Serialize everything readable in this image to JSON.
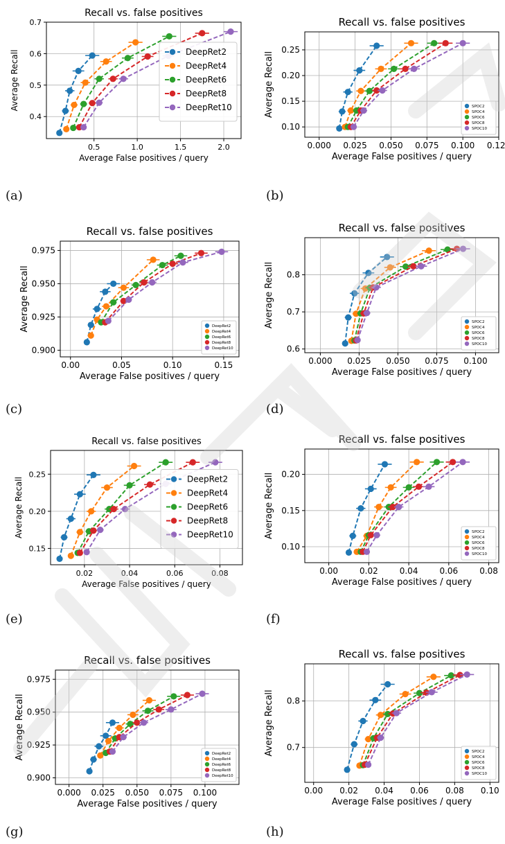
{
  "figure": {
    "captions": [
      "(a)",
      "(b)",
      "(c)",
      "(d)",
      "(e)",
      "(f)",
      "(g)",
      "(h)"
    ]
  },
  "chart_data": [
    {
      "type": "scatter",
      "title": "Recall vs. false positives",
      "xlabel": "Average False positives / query",
      "ylabel": "Average Recall",
      "xlim": [
        -0.05,
        2.2
      ],
      "ylim": [
        0.33,
        0.7
      ],
      "xticks": [
        0.5,
        1.0,
        1.5,
        2.0
      ],
      "xtick_labels": [
        "0.5",
        "1.0",
        "1.5",
        "2.0"
      ],
      "yticks": [
        0.4,
        0.5,
        0.6,
        0.7
      ],
      "ytick_labels": [
        "0.4",
        "0.5",
        "0.6",
        "0.7"
      ],
      "grid": true,
      "legend": "center-right",
      "series": [
        {
          "name": "DeepRet2",
          "color": "#1f77b4",
          "x": [
            0.1,
            0.17,
            0.22,
            0.32,
            0.48
          ],
          "y": [
            0.348,
            0.418,
            0.482,
            0.545,
            0.594
          ]
        },
        {
          "name": "DeepRet4",
          "color": "#ff7f0e",
          "x": [
            0.18,
            0.27,
            0.4,
            0.64,
            0.98
          ],
          "y": [
            0.36,
            0.437,
            0.508,
            0.575,
            0.636
          ]
        },
        {
          "name": "DeepRet6",
          "color": "#2ca02c",
          "x": [
            0.26,
            0.38,
            0.56,
            0.89,
            1.37
          ],
          "y": [
            0.364,
            0.44,
            0.52,
            0.586,
            0.655
          ]
        },
        {
          "name": "DeepRet8",
          "color": "#d62728",
          "x": [
            0.33,
            0.48,
            0.72,
            1.12,
            1.75
          ],
          "y": [
            0.366,
            0.443,
            0.52,
            0.591,
            0.665
          ]
        },
        {
          "name": "DeepRet10",
          "color": "#9467bd",
          "x": [
            0.38,
            0.56,
            0.84,
            1.36,
            2.08
          ],
          "y": [
            0.366,
            0.444,
            0.52,
            0.593,
            0.67
          ]
        }
      ]
    },
    {
      "type": "scatter",
      "title": "Recall vs. false positives",
      "xlabel": "Average False positives / query",
      "ylabel": "Average Recall",
      "xlim": [
        -0.01,
        0.125
      ],
      "ylim": [
        0.08,
        0.285
      ],
      "xticks": [
        0.0,
        0.025,
        0.05,
        0.075,
        0.1,
        0.125
      ],
      "xtick_labels": [
        "0.000",
        "0.025",
        "0.050",
        "0.075",
        "0.100",
        "0.125"
      ],
      "yticks": [
        0.1,
        0.15,
        0.2,
        0.25
      ],
      "ytick_labels": [
        "0.10",
        "0.15",
        "0.20",
        "0.25"
      ],
      "grid": true,
      "legend": "lower-right",
      "series": [
        {
          "name": "SPOC2",
          "color": "#1f77b4",
          "x": [
            0.014,
            0.016,
            0.02,
            0.028,
            0.04
          ],
          "y": [
            0.097,
            0.13,
            0.168,
            0.21,
            0.258
          ]
        },
        {
          "name": "SPOC4",
          "color": "#ff7f0e",
          "x": [
            0.018,
            0.022,
            0.029,
            0.043,
            0.064
          ],
          "y": [
            0.1,
            0.132,
            0.17,
            0.213,
            0.263
          ]
        },
        {
          "name": "SPOC6",
          "color": "#2ca02c",
          "x": [
            0.02,
            0.026,
            0.035,
            0.052,
            0.08
          ],
          "y": [
            0.1,
            0.132,
            0.17,
            0.213,
            0.263
          ]
        },
        {
          "name": "SPOC8",
          "color": "#d62728",
          "x": [
            0.022,
            0.029,
            0.04,
            0.06,
            0.088
          ],
          "y": [
            0.1,
            0.132,
            0.171,
            0.213,
            0.263
          ]
        },
        {
          "name": "SPOC10",
          "color": "#9467bd",
          "x": [
            0.024,
            0.031,
            0.044,
            0.066,
            0.1
          ],
          "y": [
            0.1,
            0.132,
            0.171,
            0.213,
            0.263
          ]
        }
      ]
    },
    {
      "type": "scatter",
      "title": "Recall vs. false positives",
      "xlabel": "Average False positives / query",
      "ylabel": "Average Recall",
      "xlim": [
        -0.01,
        0.165
      ],
      "ylim": [
        0.895,
        0.982
      ],
      "xticks": [
        0.0,
        0.05,
        0.1,
        0.15
      ],
      "xtick_labels": [
        "0.00",
        "0.05",
        "0.10",
        "0.15"
      ],
      "yticks": [
        0.9,
        0.925,
        0.95,
        0.975
      ],
      "ytick_labels": [
        "0.900",
        "0.925",
        "0.950",
        "0.975"
      ],
      "grid": true,
      "legend": "lower-right",
      "series": [
        {
          "name": "DeepRet2",
          "color": "#1f77b4",
          "x": [
            0.016,
            0.02,
            0.026,
            0.034,
            0.042
          ],
          "y": [
            0.906,
            0.919,
            0.931,
            0.944,
            0.95
          ]
        },
        {
          "name": "DeepRet4",
          "color": "#ff7f0e",
          "x": [
            0.02,
            0.026,
            0.035,
            0.052,
            0.081
          ],
          "y": [
            0.911,
            0.923,
            0.933,
            0.947,
            0.968
          ]
        },
        {
          "name": "DeepRet6",
          "color": "#2ca02c",
          "x": [
            0.03,
            0.042,
            0.064,
            0.09,
            0.108
          ],
          "y": [
            0.921,
            0.936,
            0.949,
            0.964,
            0.971
          ]
        },
        {
          "name": "DeepRet8",
          "color": "#d62728",
          "x": [
            0.034,
            0.052,
            0.072,
            0.1,
            0.128
          ],
          "y": [
            0.921,
            0.937,
            0.951,
            0.965,
            0.973
          ]
        },
        {
          "name": "DeepRet10",
          "color": "#9467bd",
          "x": [
            0.037,
            0.057,
            0.08,
            0.11,
            0.148
          ],
          "y": [
            0.922,
            0.938,
            0.951,
            0.966,
            0.974
          ]
        }
      ]
    },
    {
      "type": "scatter",
      "title": "Recall vs. false positives",
      "xlabel": "Average False positives / query",
      "ylabel": "Average Recall",
      "xlim": [
        -0.01,
        0.115
      ],
      "ylim": [
        0.59,
        0.9
      ],
      "xticks": [
        0.0,
        0.025,
        0.05,
        0.075,
        0.1
      ],
      "xtick_labels": [
        "0.000",
        "0.025",
        "0.050",
        "0.075",
        "0.100"
      ],
      "yticks": [
        0.6,
        0.7,
        0.8
      ],
      "ytick_labels": [
        "0.6",
        "0.7",
        "0.8"
      ],
      "grid": true,
      "legend": "lower-right",
      "series": [
        {
          "name": "SPOC2",
          "color": "#1f77b4",
          "x": [
            0.016,
            0.018,
            0.022,
            0.031,
            0.043
          ],
          "y": [
            0.615,
            0.685,
            0.75,
            0.805,
            0.848
          ]
        },
        {
          "name": "SPOC4",
          "color": "#ff7f0e",
          "x": [
            0.02,
            0.023,
            0.029,
            0.045,
            0.07
          ],
          "y": [
            0.622,
            0.695,
            0.763,
            0.82,
            0.865
          ]
        },
        {
          "name": "SPOC6",
          "color": "#2ca02c",
          "x": [
            0.022,
            0.026,
            0.032,
            0.055,
            0.082
          ],
          "y": [
            0.623,
            0.696,
            0.765,
            0.822,
            0.868
          ]
        },
        {
          "name": "SPOC8",
          "color": "#d62728",
          "x": [
            0.023,
            0.028,
            0.034,
            0.06,
            0.088
          ],
          "y": [
            0.623,
            0.696,
            0.766,
            0.823,
            0.87
          ]
        },
        {
          "name": "SPOC10",
          "color": "#9467bd",
          "x": [
            0.024,
            0.03,
            0.036,
            0.065,
            0.092
          ],
          "y": [
            0.624,
            0.697,
            0.766,
            0.823,
            0.87
          ]
        }
      ]
    },
    {
      "type": "scatter",
      "title": "Recall vs. false positives",
      "xlabel": "Average False positives / query",
      "ylabel": "Average Recall",
      "xlim": [
        0.005,
        0.09
      ],
      "ylim": [
        0.128,
        0.282
      ],
      "xticks": [
        0.02,
        0.04,
        0.06,
        0.08
      ],
      "xtick_labels": [
        "0.02",
        "0.04",
        "0.06",
        "0.08"
      ],
      "yticks": [
        0.15,
        0.2,
        0.25
      ],
      "ytick_labels": [
        "0.15",
        "0.20",
        "0.25"
      ],
      "grid": true,
      "legend": "center-right",
      "series": [
        {
          "name": "DeepRet2",
          "color": "#1f77b4",
          "x": [
            0.009,
            0.011,
            0.014,
            0.018,
            0.024
          ],
          "y": [
            0.136,
            0.165,
            0.19,
            0.223,
            0.249
          ]
        },
        {
          "name": "DeepRet4",
          "color": "#ff7f0e",
          "x": [
            0.014,
            0.018,
            0.023,
            0.03,
            0.042
          ],
          "y": [
            0.14,
            0.172,
            0.2,
            0.232,
            0.261
          ]
        },
        {
          "name": "DeepRet6",
          "color": "#2ca02c",
          "x": [
            0.017,
            0.022,
            0.031,
            0.04,
            0.056
          ],
          "y": [
            0.144,
            0.173,
            0.203,
            0.235,
            0.266
          ]
        },
        {
          "name": "DeepRet8",
          "color": "#d62728",
          "x": [
            0.018,
            0.024,
            0.033,
            0.049,
            0.068
          ],
          "y": [
            0.144,
            0.174,
            0.203,
            0.236,
            0.266
          ]
        },
        {
          "name": "DeepRet10",
          "color": "#9467bd",
          "x": [
            0.021,
            0.027,
            0.038,
            0.056,
            0.078
          ],
          "y": [
            0.145,
            0.175,
            0.203,
            0.237,
            0.266
          ]
        }
      ]
    },
    {
      "type": "scatter",
      "title": "Recall vs. false positives",
      "xlabel": "Average False positives / query",
      "ylabel": "Average Recall",
      "xlim": [
        -0.012,
        0.085
      ],
      "ylim": [
        0.078,
        0.235
      ],
      "xticks": [
        0.0,
        0.02,
        0.04,
        0.06,
        0.08
      ],
      "xtick_labels": [
        "0.00",
        "0.02",
        "0.04",
        "0.06",
        "0.08"
      ],
      "yticks": [
        0.1,
        0.15,
        0.2
      ],
      "ytick_labels": [
        "0.10",
        "0.15",
        "0.20"
      ],
      "grid": true,
      "legend": "lower-right",
      "series": [
        {
          "name": "SPOC2",
          "color": "#1f77b4",
          "x": [
            0.01,
            0.012,
            0.016,
            0.021,
            0.028
          ],
          "y": [
            0.092,
            0.115,
            0.153,
            0.18,
            0.214
          ]
        },
        {
          "name": "SPOC4",
          "color": "#ff7f0e",
          "x": [
            0.014,
            0.019,
            0.025,
            0.031,
            0.044
          ],
          "y": [
            0.093,
            0.115,
            0.155,
            0.182,
            0.217
          ]
        },
        {
          "name": "SPOC6",
          "color": "#2ca02c",
          "x": [
            0.016,
            0.02,
            0.03,
            0.04,
            0.054
          ],
          "y": [
            0.093,
            0.116,
            0.155,
            0.182,
            0.217
          ]
        },
        {
          "name": "SPOC8",
          "color": "#d62728",
          "x": [
            0.017,
            0.021,
            0.032,
            0.045,
            0.062
          ],
          "y": [
            0.093,
            0.116,
            0.155,
            0.183,
            0.217
          ]
        },
        {
          "name": "SPOC10",
          "color": "#9467bd",
          "x": [
            0.019,
            0.024,
            0.035,
            0.05,
            0.067
          ],
          "y": [
            0.093,
            0.116,
            0.155,
            0.183,
            0.217
          ]
        }
      ]
    },
    {
      "type": "scatter",
      "title": "Recall vs. false positives",
      "xlabel": "Average False positives / query",
      "ylabel": "Average Recall",
      "xlim": [
        -0.01,
        0.125
      ],
      "ylim": [
        0.895,
        0.982
      ],
      "xticks": [
        0.0,
        0.025,
        0.05,
        0.075,
        0.1
      ],
      "xtick_labels": [
        "0.000",
        "0.025",
        "0.050",
        "0.075",
        "0.100"
      ],
      "yticks": [
        0.9,
        0.925,
        0.95,
        0.975
      ],
      "ytick_labels": [
        "0.900",
        "0.925",
        "0.950",
        "0.975"
      ],
      "grid": true,
      "legend": "lower-right",
      "series": [
        {
          "name": "DeepRet2",
          "color": "#1f77b4",
          "x": [
            0.015,
            0.018,
            0.022,
            0.027,
            0.032
          ],
          "y": [
            0.905,
            0.914,
            0.924,
            0.932,
            0.942
          ]
        },
        {
          "name": "DeepRet4",
          "color": "#ff7f0e",
          "x": [
            0.023,
            0.029,
            0.037,
            0.047,
            0.059
          ],
          "y": [
            0.917,
            0.928,
            0.938,
            0.948,
            0.959
          ]
        },
        {
          "name": "DeepRet6",
          "color": "#2ca02c",
          "x": [
            0.027,
            0.034,
            0.045,
            0.058,
            0.077
          ],
          "y": [
            0.919,
            0.93,
            0.941,
            0.951,
            0.962
          ]
        },
        {
          "name": "DeepRet8",
          "color": "#d62728",
          "x": [
            0.03,
            0.037,
            0.05,
            0.066,
            0.087
          ],
          "y": [
            0.92,
            0.931,
            0.942,
            0.952,
            0.963
          ]
        },
        {
          "name": "DeepRet10",
          "color": "#9467bd",
          "x": [
            0.032,
            0.04,
            0.055,
            0.075,
            0.098
          ],
          "y": [
            0.92,
            0.931,
            0.942,
            0.952,
            0.964
          ]
        }
      ]
    },
    {
      "type": "scatter",
      "title": "Recall vs. false positives",
      "xlabel": "Average False positives / query",
      "ylabel": "Average Recall",
      "xlim": [
        -0.005,
        0.105
      ],
      "ylim": [
        0.625,
        0.88
      ],
      "xticks": [
        0.0,
        0.02,
        0.04,
        0.06,
        0.08,
        0.1
      ],
      "xtick_labels": [
        "0.00",
        "0.02",
        "0.04",
        "0.06",
        "0.08",
        "0.10"
      ],
      "yticks": [
        0.7,
        0.8
      ],
      "ytick_labels": [
        "0.7",
        "0.8"
      ],
      "grid": true,
      "legend": "lower-right",
      "series": [
        {
          "name": "SPOC2",
          "color": "#1f77b4",
          "x": [
            0.019,
            0.023,
            0.028,
            0.035,
            0.042
          ],
          "y": [
            0.652,
            0.707,
            0.757,
            0.802,
            0.836
          ]
        },
        {
          "name": "SPOC4",
          "color": "#ff7f0e",
          "x": [
            0.026,
            0.031,
            0.038,
            0.052,
            0.068
          ],
          "y": [
            0.661,
            0.718,
            0.77,
            0.815,
            0.852
          ]
        },
        {
          "name": "SPOC6",
          "color": "#2ca02c",
          "x": [
            0.028,
            0.034,
            0.042,
            0.06,
            0.078
          ],
          "y": [
            0.662,
            0.72,
            0.772,
            0.817,
            0.855
          ]
        },
        {
          "name": "SPOC8",
          "color": "#d62728",
          "x": [
            0.029,
            0.036,
            0.045,
            0.064,
            0.083
          ],
          "y": [
            0.663,
            0.721,
            0.773,
            0.818,
            0.856
          ]
        },
        {
          "name": "SPOC10",
          "color": "#9467bd",
          "x": [
            0.031,
            0.038,
            0.047,
            0.067,
            0.087
          ],
          "y": [
            0.663,
            0.721,
            0.774,
            0.819,
            0.857
          ]
        }
      ]
    }
  ]
}
